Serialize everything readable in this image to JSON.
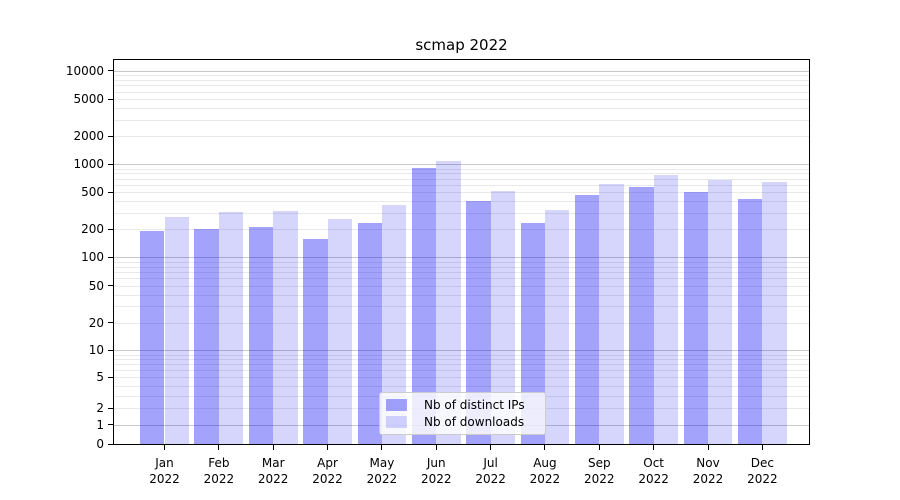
{
  "title": "scmap 2022",
  "legend": {
    "items": [
      {
        "label": "Nb of distinct IPs",
        "color": "rgba(0,0,245,0.36)"
      },
      {
        "label": "Nb of downloads",
        "color": "rgba(0,0,245,0.16)"
      }
    ]
  },
  "chart_data": {
    "type": "bar",
    "title": "scmap 2022",
    "categories": [
      "Jan 2022",
      "Feb 2022",
      "Mar 2022",
      "Apr 2022",
      "May 2022",
      "Jun 2022",
      "Jul 2022",
      "Aug 2022",
      "Sep 2022",
      "Oct 2022",
      "Nov 2022",
      "Dec 2022"
    ],
    "x_tick_months": [
      "Jan",
      "Feb",
      "Mar",
      "Apr",
      "May",
      "Jun",
      "Jul",
      "Aug",
      "Sep",
      "Oct",
      "Nov",
      "Dec"
    ],
    "x_tick_year": "2022",
    "series": [
      {
        "name": "Nb of distinct IPs",
        "values": [
          193,
          203,
          210,
          158,
          235,
          916,
          403,
          234,
          467,
          565,
          499,
          423
        ]
      },
      {
        "name": "Nb of downloads",
        "values": [
          273,
          307,
          317,
          256,
          362,
          1090,
          515,
          322,
          613,
          771,
          676,
          648
        ]
      }
    ],
    "bar_colors": [
      "rgba(0,0,245,0.36)",
      "rgba(0,0,245,0.16)"
    ],
    "y_axis": {
      "scale": "symlog (asinh-like, linear near 0)",
      "tick_values": [
        0,
        1,
        2,
        5,
        10,
        20,
        50,
        100,
        200,
        500,
        1000,
        2000,
        5000,
        10000
      ],
      "tick_labels": [
        "0",
        "1",
        "2",
        "5",
        "10",
        "20",
        "50",
        "100",
        "200",
        "500",
        "1000",
        "2000",
        "5000",
        "10000"
      ],
      "range_top": 13400
    },
    "grid": {
      "horizontal": true,
      "vertical": false,
      "major_color": "#c9c9c9",
      "minor_color": "#e9e9e9"
    },
    "legend_position": "lower center",
    "xlabel": "",
    "ylabel": ""
  }
}
